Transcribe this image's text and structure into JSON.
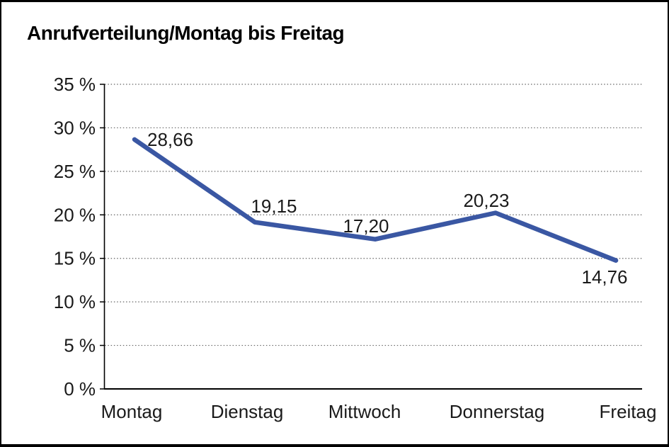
{
  "chart_data": {
    "type": "line",
    "title": "Anrufverteilung/Montag bis Freitag",
    "categories": [
      "Montag",
      "Dienstag",
      "Mittwoch",
      "Donnerstag",
      "Freitag"
    ],
    "values": [
      28.66,
      19.15,
      17.2,
      20.23,
      14.76
    ],
    "value_labels": [
      "28,66",
      "19,15",
      "17,20",
      "20,23",
      "14,76"
    ],
    "xlabel": "",
    "ylabel": "",
    "ylim": [
      0,
      35
    ],
    "ytick_step": 5,
    "ytick_labels": [
      "0 %",
      "5 %",
      "10 %",
      "15 %",
      "20 %",
      "25 %",
      "30 %",
      "35 %"
    ],
    "grid": "horizontal-dotted",
    "legend": "none",
    "line_color": "#3A57A3",
    "grid_color": "#666666",
    "axis_color": "#000000",
    "text_color": "#1a1a1a",
    "background_color": "#ffffff"
  }
}
